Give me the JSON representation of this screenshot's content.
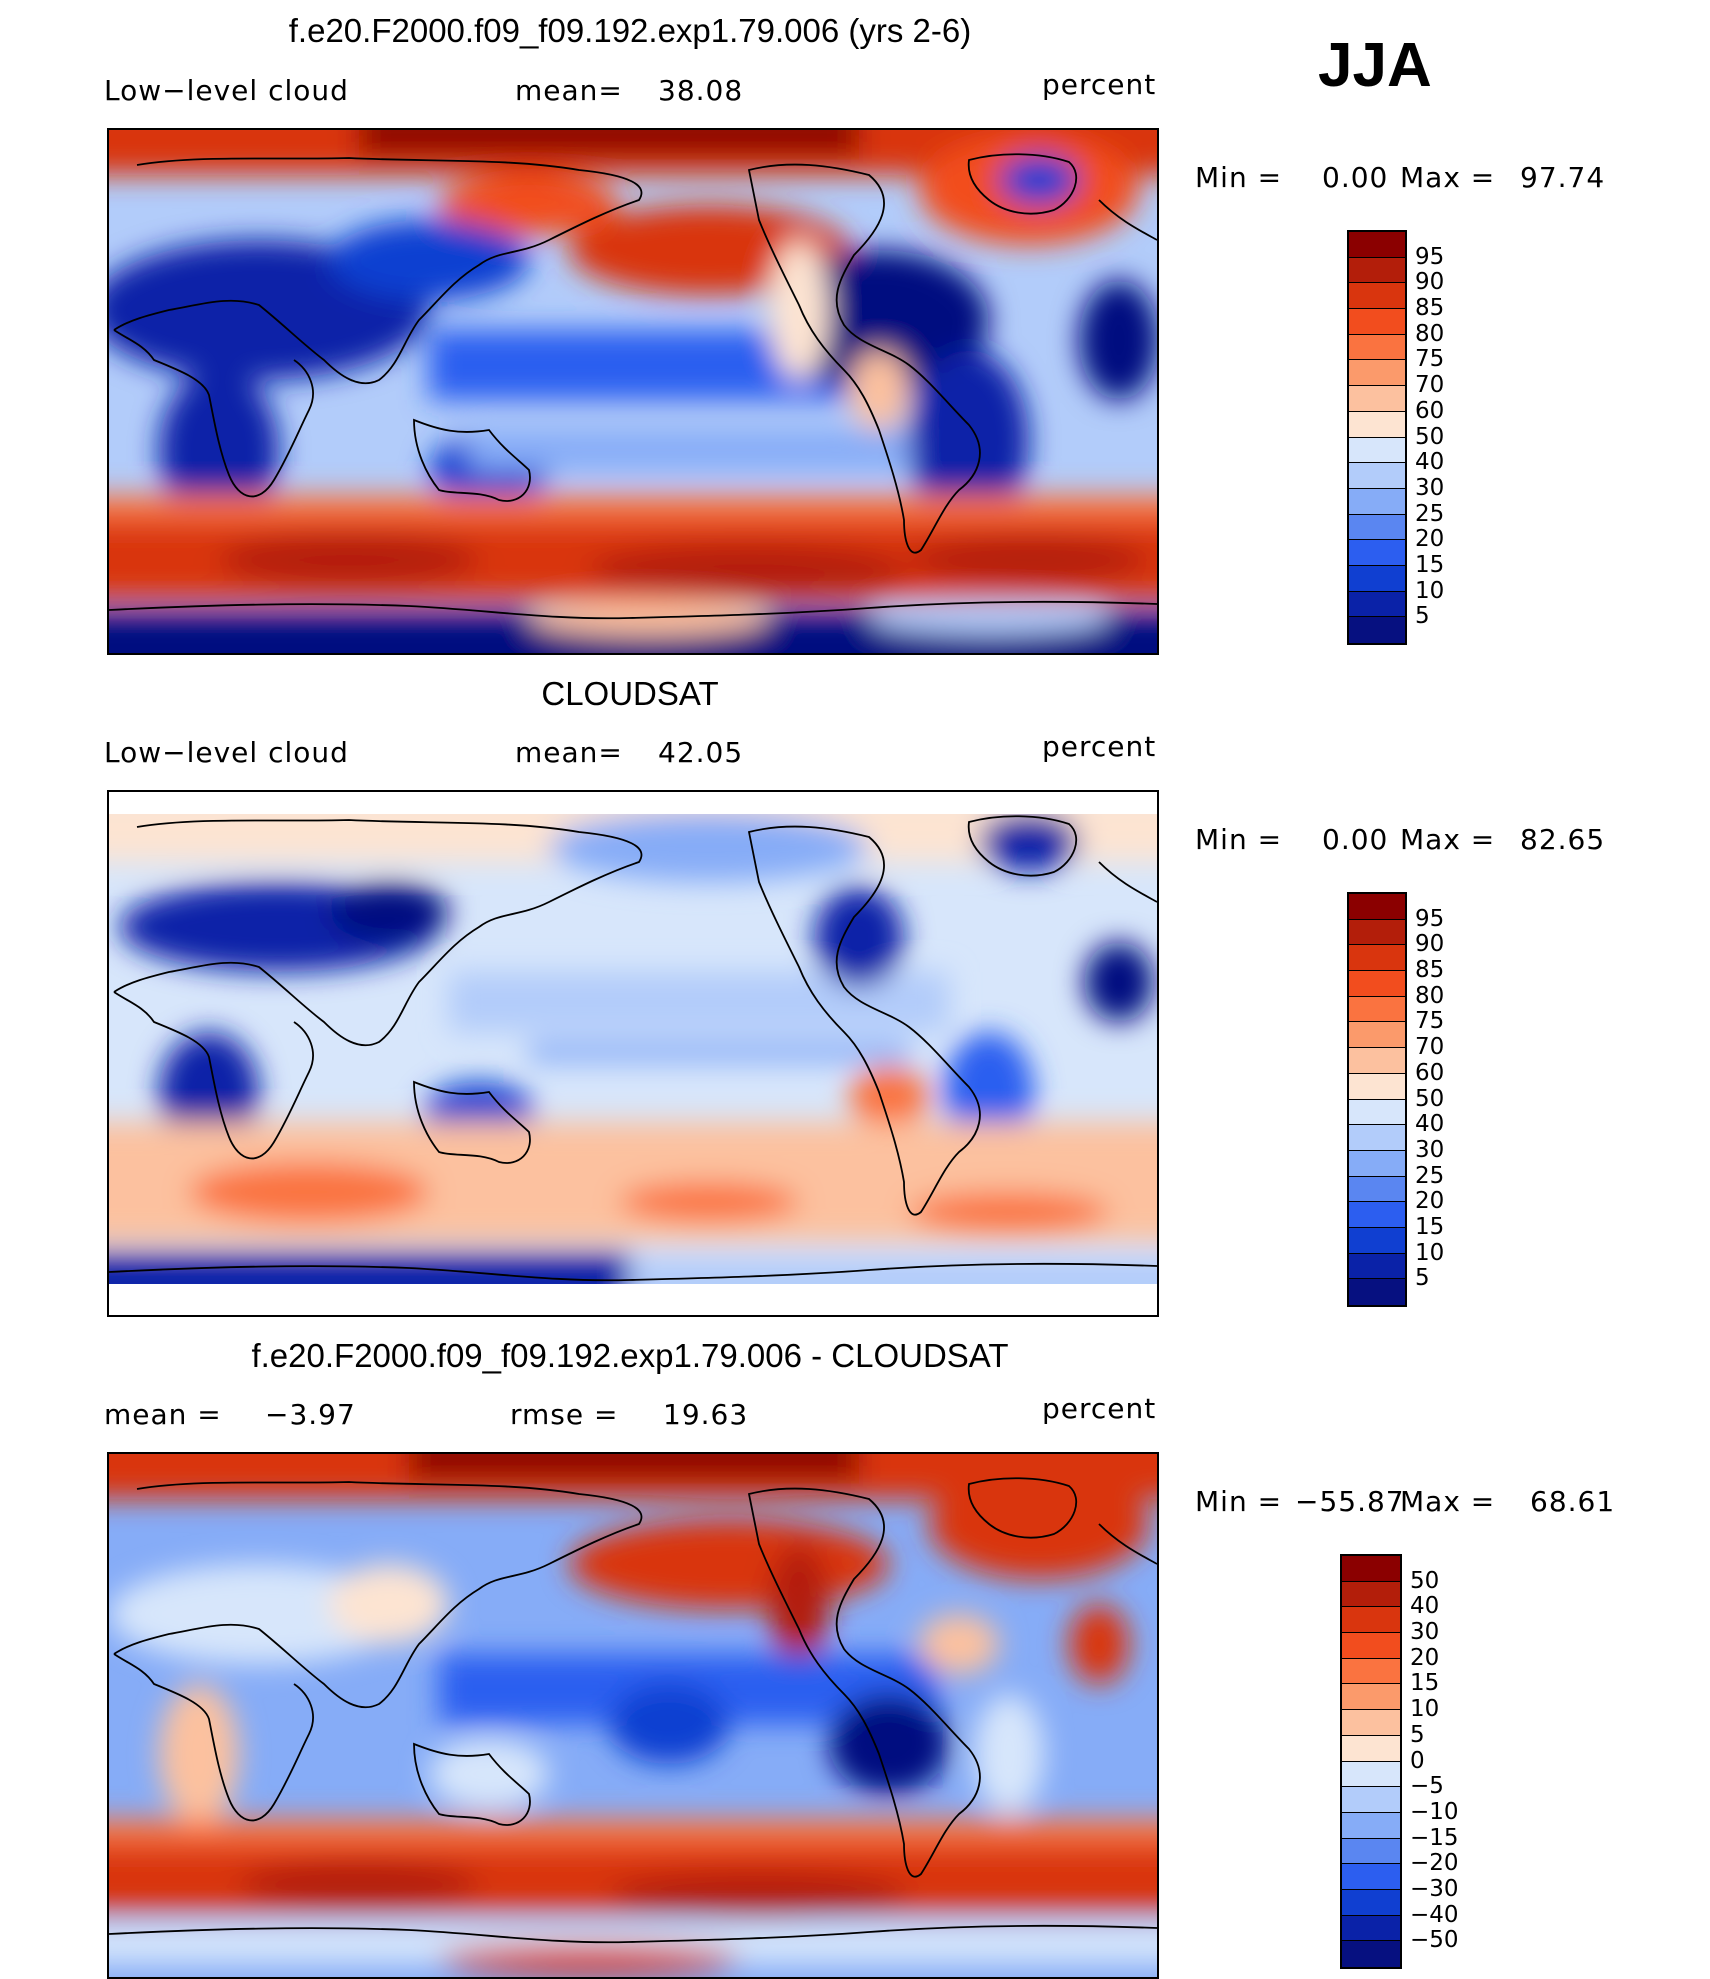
{
  "season": "JJA",
  "panels": [
    {
      "title": "f.e20.F2000.f09_f09.192.exp1.79.006 (yrs 2-6)",
      "left_label": "Low−level  cloud",
      "mean_label": "mean=",
      "mean_value": "38.08",
      "units": "percent",
      "min_label": "Min  =",
      "min_value": "0.00",
      "max_label": "Max  =",
      "max_value": "97.74",
      "colorbar": {
        "labels": [
          "95",
          "90",
          "85",
          "80",
          "75",
          "70",
          "60",
          "50",
          "40",
          "30",
          "25",
          "20",
          "15",
          "10",
          "5"
        ],
        "colors": [
          "#8b0000",
          "#b31e0a",
          "#d9350e",
          "#f24d1e",
          "#fa7340",
          "#fb9a6b",
          "#fcc19f",
          "#fde4d2",
          "#d7e6fb",
          "#b2ccfa",
          "#86acf7",
          "#5a86f1",
          "#2c5ef0",
          "#103fd1",
          "#0a22a8",
          "#061080"
        ]
      },
      "chart_data": {
        "type": "heatmap",
        "field": "Low-level cloud",
        "units": "percent",
        "mean": 38.08,
        "min": 0.0,
        "max": 97.74,
        "levels": [
          5,
          10,
          15,
          20,
          25,
          30,
          40,
          50,
          60,
          70,
          75,
          80,
          85,
          90,
          95
        ]
      }
    },
    {
      "title": "CLOUDSAT",
      "left_label": "Low−level  cloud",
      "mean_label": "mean=",
      "mean_value": "42.05",
      "units": "percent",
      "min_label": "Min  =",
      "min_value": "0.00",
      "max_label": "Max  =",
      "max_value": "82.65",
      "colorbar": {
        "labels": [
          "95",
          "90",
          "85",
          "80",
          "75",
          "70",
          "60",
          "50",
          "40",
          "30",
          "25",
          "20",
          "15",
          "10",
          "5"
        ],
        "colors": [
          "#8b0000",
          "#b31e0a",
          "#d9350e",
          "#f24d1e",
          "#fa7340",
          "#fb9a6b",
          "#fcc19f",
          "#fde4d2",
          "#d7e6fb",
          "#b2ccfa",
          "#86acf7",
          "#5a86f1",
          "#2c5ef0",
          "#103fd1",
          "#0a22a8",
          "#061080"
        ]
      },
      "chart_data": {
        "type": "heatmap",
        "field": "Low-level cloud",
        "units": "percent",
        "mean": 42.05,
        "min": 0.0,
        "max": 82.65,
        "levels": [
          5,
          10,
          15,
          20,
          25,
          30,
          40,
          50,
          60,
          70,
          75,
          80,
          85,
          90,
          95
        ]
      }
    },
    {
      "title": "f.e20.F2000.f09_f09.192.exp1.79.006 - CLOUDSAT",
      "left_label": "mean  =",
      "left_value": "−3.97",
      "rmse_label": "rmse  =",
      "rmse_value": "19.63",
      "units": "percent",
      "min_label": "Min  =",
      "min_value": "−55.87",
      "max_label": "Max  =",
      "max_value": "68.61",
      "colorbar": {
        "labels": [
          "50",
          "40",
          "30",
          "20",
          "15",
          "10",
          "5",
          "0",
          "−5",
          "−10",
          "−15",
          "−20",
          "−30",
          "−40",
          "−50"
        ],
        "colors": [
          "#8b0000",
          "#b31e0a",
          "#d9350e",
          "#f24d1e",
          "#fa7340",
          "#fb9a6b",
          "#fcc19f",
          "#fde4d2",
          "#d7e6fb",
          "#b2ccfa",
          "#86acf7",
          "#5a86f1",
          "#2c5ef0",
          "#103fd1",
          "#0a22a8",
          "#061080"
        ]
      },
      "chart_data": {
        "type": "heatmap",
        "field": "Low-level cloud difference (model - CLOUDSAT)",
        "units": "percent",
        "mean": -3.97,
        "rmse": 19.63,
        "min": -55.87,
        "max": 68.61,
        "levels": [
          -50,
          -40,
          -30,
          -20,
          -15,
          -10,
          -5,
          0,
          5,
          10,
          15,
          20,
          30,
          40,
          50
        ]
      }
    }
  ]
}
